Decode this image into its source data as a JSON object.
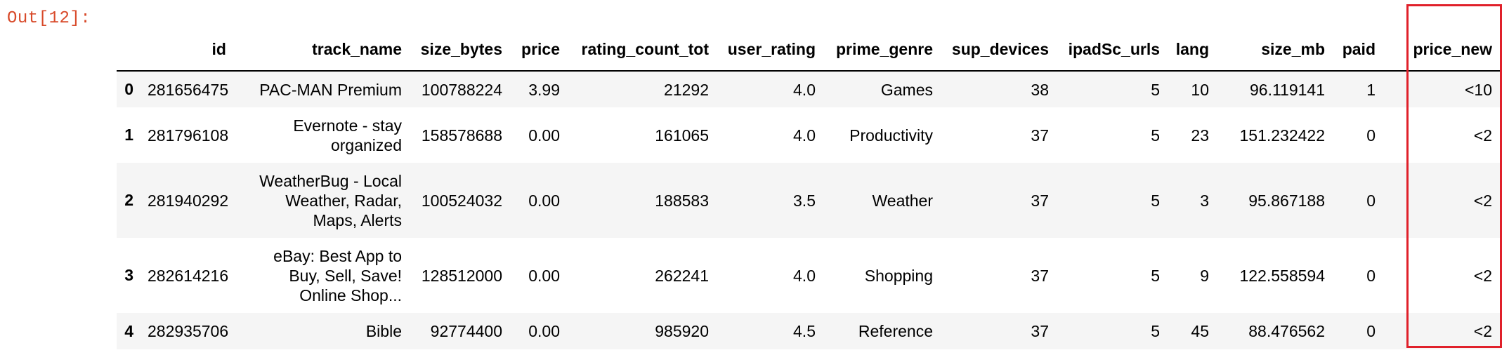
{
  "prompt": "Out[12]:",
  "columns": [
    "",
    "id",
    "track_name",
    "size_bytes",
    "price",
    "rating_count_tot",
    "user_rating",
    "prime_genre",
    "sup_devices",
    "ipadSc_urls",
    "lang",
    "size_mb",
    "paid",
    "price_new"
  ],
  "rows": [
    {
      "index": "0",
      "id": "281656475",
      "track_name": "PAC-MAN Premium",
      "size_bytes": "100788224",
      "price": "3.99",
      "rating_count_tot": "21292",
      "user_rating": "4.0",
      "prime_genre": "Games",
      "sup_devices": "38",
      "ipadSc_urls": "5",
      "lang": "10",
      "size_mb": "96.119141",
      "paid": "1",
      "price_new": "<10"
    },
    {
      "index": "1",
      "id": "281796108",
      "track_name": "Evernote - stay organized",
      "size_bytes": "158578688",
      "price": "0.00",
      "rating_count_tot": "161065",
      "user_rating": "4.0",
      "prime_genre": "Productivity",
      "sup_devices": "37",
      "ipadSc_urls": "5",
      "lang": "23",
      "size_mb": "151.232422",
      "paid": "0",
      "price_new": "<2"
    },
    {
      "index": "2",
      "id": "281940292",
      "track_name": "WeatherBug - Local Weather, Radar, Maps, Alerts",
      "size_bytes": "100524032",
      "price": "0.00",
      "rating_count_tot": "188583",
      "user_rating": "3.5",
      "prime_genre": "Weather",
      "sup_devices": "37",
      "ipadSc_urls": "5",
      "lang": "3",
      "size_mb": "95.867188",
      "paid": "0",
      "price_new": "<2"
    },
    {
      "index": "3",
      "id": "282614216",
      "track_name": "eBay: Best App to Buy, Sell, Save! Online Shop...",
      "size_bytes": "128512000",
      "price": "0.00",
      "rating_count_tot": "262241",
      "user_rating": "4.0",
      "prime_genre": "Shopping",
      "sup_devices": "37",
      "ipadSc_urls": "5",
      "lang": "9",
      "size_mb": "122.558594",
      "paid": "0",
      "price_new": "<2"
    },
    {
      "index": "4",
      "id": "282935706",
      "track_name": "Bible",
      "size_bytes": "92774400",
      "price": "0.00",
      "rating_count_tot": "985920",
      "user_rating": "4.5",
      "prime_genre": "Reference",
      "sup_devices": "37",
      "ipadSc_urls": "5",
      "lang": "45",
      "size_mb": "88.476562",
      "paid": "0",
      "price_new": "<2"
    }
  ],
  "colors": {
    "prompt": "#d84a2a",
    "highlight_box": "#e0202a",
    "stripe": "#f5f5f5"
  }
}
